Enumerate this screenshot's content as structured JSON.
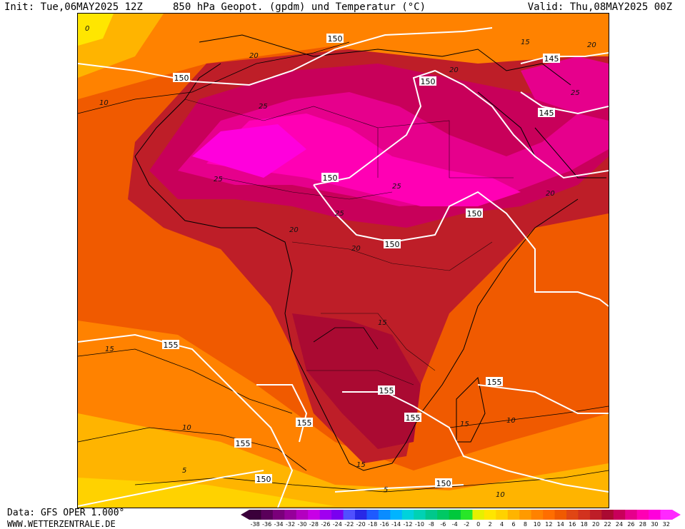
{
  "header": {
    "init": "Init: Tue,06MAY2025 12Z",
    "title": "850 hPa Geopot. (gpdm) und Temperatur (°C)",
    "valid": "Valid: Thu,08MAY2025 00Z"
  },
  "footer": {
    "data_source": "Data: GFS OPER 1.000°",
    "website": "WWW.WETTERZENTRALE.DE"
  },
  "map": {
    "geopotential_labels": [
      "150",
      "150",
      "150",
      "150",
      "150",
      "145",
      "145",
      "150",
      "155",
      "155",
      "155",
      "155",
      "155",
      "155",
      "150",
      "150"
    ],
    "temperature_labels": [
      "20",
      "25",
      "25",
      "25",
      "25",
      "20",
      "20",
      "20",
      "20",
      "20",
      "25",
      "15",
      "15",
      "15",
      "15",
      "10",
      "10",
      "10",
      "5",
      "5",
      "10",
      "15",
      "0"
    ]
  },
  "legend": {
    "ticks": [
      "-38",
      "-36",
      "-34",
      "-32",
      "-30",
      "-28",
      "-26",
      "-24",
      "-22",
      "-20",
      "-18",
      "-16",
      "-14",
      "-12",
      "-10",
      "-8",
      "-6",
      "-4",
      "-2",
      "0",
      "2",
      "4",
      "6",
      "8",
      "10",
      "12",
      "14",
      "16",
      "18",
      "20",
      "22",
      "24",
      "26",
      "28",
      "30",
      "32"
    ],
    "colors": [
      "#3a003a",
      "#5a005a",
      "#7a007a",
      "#96009a",
      "#b400c0",
      "#c800e6",
      "#a000f0",
      "#7a00f0",
      "#5050ff",
      "#2828e6",
      "#1e5aff",
      "#0a8cff",
      "#00b4ff",
      "#00d2dc",
      "#00d2b4",
      "#00c88c",
      "#00c864",
      "#00c83c",
      "#28e628",
      "#e6f000",
      "#ffe600",
      "#ffd200",
      "#ffb400",
      "#ff9a00",
      "#ff8200",
      "#ff6e00",
      "#f05a00",
      "#e04614",
      "#d2321e",
      "#be1e28",
      "#aa0a32",
      "#c8005a",
      "#e6008c",
      "#ff00b4",
      "#ff00dc",
      "#ff28ff"
    ]
  }
}
